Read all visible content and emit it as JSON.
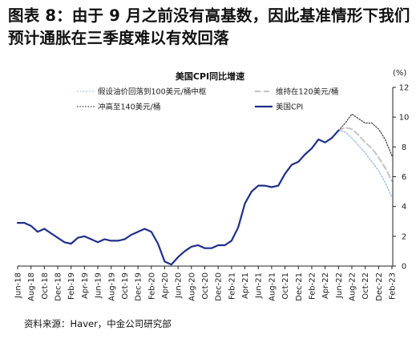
{
  "figure_title": "图表 8：由于 9 月之前没有高基数，因此基准情形下我们预计通胀在三季度难以有效回落",
  "source": "资料来源：Haver，中金公司研究部",
  "colors": {
    "cpi": "#1f2f8c",
    "scenario_100": "#a8c8e6",
    "scenario_120": "#c8c8c8",
    "scenario_140": "#555555"
  },
  "chart_data": {
    "type": "line",
    "title": "美国CPI同比增速",
    "y_unit": "(%)",
    "ylim": [
      0,
      12
    ],
    "y_ticks": [
      0,
      2,
      4,
      6,
      8,
      10,
      12
    ],
    "y_axis_side": "right",
    "grid": false,
    "legend_position": "top-left",
    "x_tick_labels": [
      "Jun-18",
      "Aug-18",
      "Oct-18",
      "Dec-18",
      "Feb-19",
      "Apr-19",
      "Jun-19",
      "Aug-19",
      "Oct-19",
      "Dec-19",
      "Feb-20",
      "Apr-20",
      "Jun-20",
      "Aug-20",
      "Oct-20",
      "Dec-20",
      "Feb-21",
      "Apr-21",
      "Jun-21",
      "Aug-21",
      "Oct-21",
      "Dec-21",
      "Feb-22",
      "Apr-22",
      "Jun-22",
      "Aug-22",
      "Oct-22",
      "Dec-22",
      "Feb-23"
    ],
    "legend": [
      {
        "key": "s100",
        "label": "假设油价回落到100美元/桶中枢"
      },
      {
        "key": "s120",
        "label": "维持在120美元/桶"
      },
      {
        "key": "s140",
        "label": "冲高至140美元/桶"
      },
      {
        "key": "cpi",
        "label": "美国CPI"
      }
    ],
    "series": [
      {
        "key": "cpi",
        "name": "美国CPI",
        "start": "Jun-18",
        "values": [
          2.9,
          2.9,
          2.7,
          2.3,
          2.5,
          2.2,
          1.9,
          1.6,
          1.5,
          1.9,
          2.0,
          1.8,
          1.6,
          1.8,
          1.7,
          1.7,
          1.8,
          2.1,
          2.3,
          2.5,
          2.3,
          1.5,
          0.3,
          0.1,
          0.6,
          1.0,
          1.3,
          1.4,
          1.2,
          1.2,
          1.4,
          1.4,
          1.7,
          2.6,
          4.2,
          5.0,
          5.4,
          5.4,
          5.3,
          5.4,
          6.2,
          6.8,
          7.0,
          7.5,
          7.9,
          8.5,
          8.3,
          8.6,
          9.1
        ]
      },
      {
        "key": "s100",
        "name": "假设油价回落到100美元/桶中枢",
        "start": "Jun-22",
        "values": [
          9.1,
          9.0,
          8.6,
          8.1,
          7.6,
          7.0,
          6.4,
          5.6,
          4.6
        ]
      },
      {
        "key": "s120",
        "name": "维持在120美元/桶",
        "start": "Jun-22",
        "values": [
          9.1,
          9.3,
          9.2,
          8.8,
          8.3,
          7.9,
          7.3,
          6.6,
          5.7
        ]
      },
      {
        "key": "s140",
        "name": "冲高至140美元/桶",
        "start": "Jun-22",
        "values": [
          9.1,
          9.6,
          10.2,
          9.9,
          9.6,
          9.6,
          9.2,
          8.5,
          7.4
        ]
      }
    ]
  }
}
